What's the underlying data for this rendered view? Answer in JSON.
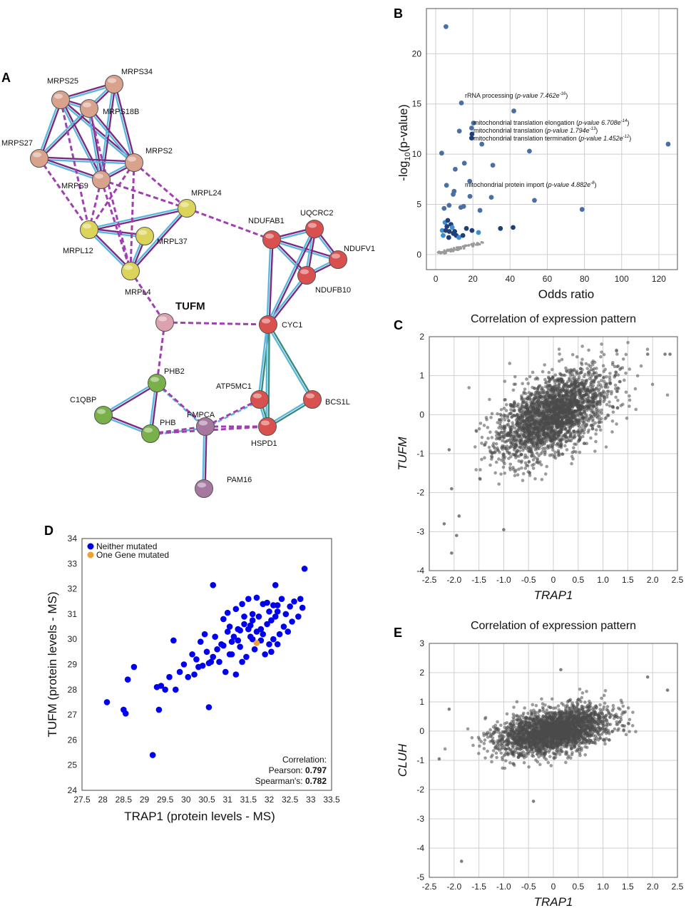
{
  "panels": {
    "A": "A",
    "B": "B",
    "C": "C",
    "D": "D",
    "E": "E"
  },
  "network": {
    "nodes": [
      {
        "id": "MRPS25",
        "color": "#d9a28c"
      },
      {
        "id": "MRPS34",
        "color": "#d9a28c"
      },
      {
        "id": "MRPS18B",
        "color": "#d9a28c"
      },
      {
        "id": "MRPS27",
        "color": "#d9a28c"
      },
      {
        "id": "MRPS2",
        "color": "#d9a28c"
      },
      {
        "id": "MRPS9",
        "color": "#d9a28c"
      },
      {
        "id": "MRPL24",
        "color": "#dcd45a"
      },
      {
        "id": "MRPL12",
        "color": "#dcd45a"
      },
      {
        "id": "MRPL37",
        "color": "#dcd45a"
      },
      {
        "id": "MRPL4",
        "color": "#dcd45a"
      },
      {
        "id": "TUFM",
        "color": "#dba2ad"
      },
      {
        "id": "NDUFAB1",
        "color": "#d9514f"
      },
      {
        "id": "UQCRC2",
        "color": "#d9514f"
      },
      {
        "id": "NDUFV1",
        "color": "#d9514f"
      },
      {
        "id": "NDUFB10",
        "color": "#d9514f"
      },
      {
        "id": "CYC1",
        "color": "#d9514f"
      },
      {
        "id": "ATP5MC1",
        "color": "#d9514f"
      },
      {
        "id": "BCS1L",
        "color": "#d9514f"
      },
      {
        "id": "HSPD1",
        "color": "#d9514f"
      },
      {
        "id": "PHB2",
        "color": "#7ab04a"
      },
      {
        "id": "C1QBP",
        "color": "#7ab04a"
      },
      {
        "id": "PHB",
        "color": "#7ab04a"
      },
      {
        "id": "PMPCA",
        "color": "#a678a0"
      },
      {
        "id": "PAM16",
        "color": "#a678a0"
      }
    ],
    "solid_edges": [
      [
        "MRPS25",
        "MRPS34"
      ],
      [
        "MRPS25",
        "MRPS18B"
      ],
      [
        "MRPS25",
        "MRPS27"
      ],
      [
        "MRPS25",
        "MRPS2"
      ],
      [
        "MRPS25",
        "MRPS9"
      ],
      [
        "MRPS34",
        "MRPS18B"
      ],
      [
        "MRPS34",
        "MRPS2"
      ],
      [
        "MRPS34",
        "MRPS9"
      ],
      [
        "MRPS18B",
        "MRPS27"
      ],
      [
        "MRPS18B",
        "MRPS2"
      ],
      [
        "MRPS18B",
        "MRPS9"
      ],
      [
        "MRPS27",
        "MRPS2"
      ],
      [
        "MRPS27",
        "MRPS9"
      ],
      [
        "MRPS2",
        "MRPS9"
      ],
      [
        "MRPL24",
        "MRPL12"
      ],
      [
        "MRPL24",
        "MRPL4"
      ],
      [
        "MRPL12",
        "MRPL37"
      ],
      [
        "MRPL12",
        "MRPL4"
      ],
      [
        "MRPL37",
        "MRPL4"
      ],
      [
        "NDUFAB1",
        "UQCRC2"
      ],
      [
        "NDUFAB1",
        "NDUFV1"
      ],
      [
        "NDUFAB1",
        "NDUFB10"
      ],
      [
        "UQCRC2",
        "NDUFV1"
      ],
      [
        "UQCRC2",
        "NDUFB10"
      ],
      [
        "NDUFV1",
        "NDUFB10"
      ],
      [
        "NDUFAB1",
        "CYC1"
      ],
      [
        "UQCRC2",
        "CYC1"
      ],
      [
        "NDUFB10",
        "CYC1"
      ],
      [
        "CYC1",
        "ATP5MC1"
      ],
      [
        "CYC1",
        "BCS1L"
      ],
      [
        "CYC1",
        "HSPD1"
      ],
      [
        "ATP5MC1",
        "HSPD1"
      ],
      [
        "BCS1L",
        "HSPD1"
      ],
      [
        "PHB2",
        "C1QBP"
      ],
      [
        "PHB2",
        "PHB"
      ],
      [
        "C1QBP",
        "PHB"
      ],
      [
        "PMPCA",
        "PAM16"
      ]
    ],
    "dashed_edges": [
      [
        "MRPS27",
        "MRPL12"
      ],
      [
        "MRPS9",
        "MRPL12"
      ],
      [
        "MRPS9",
        "MRPL4"
      ],
      [
        "MRPS9",
        "MRPL24"
      ],
      [
        "MRPS2",
        "MRPL12"
      ],
      [
        "MRPS2",
        "MRPL24"
      ],
      [
        "MRPS18B",
        "MRPL4"
      ],
      [
        "MRPS2",
        "MRPL4"
      ],
      [
        "MRPS25",
        "MRPL12"
      ],
      [
        "MRPL24",
        "NDUFAB1"
      ],
      [
        "MRPL4",
        "TUFM"
      ],
      [
        "TUFM",
        "CYC1"
      ],
      [
        "TUFM",
        "PHB2"
      ],
      [
        "PHB2",
        "PMPCA"
      ],
      [
        "PHB",
        "PMPCA"
      ],
      [
        "PMPCA",
        "HSPD1"
      ],
      [
        "PMPCA",
        "ATP5MC1"
      ],
      [
        "PHB",
        "HSPD1"
      ]
    ]
  },
  "chart_data": [
    {
      "panel": "B",
      "type": "scatter",
      "xlabel": "Odds ratio",
      "ylabel_prefix": "-log",
      "ylabel_sub": "10",
      "ylabel_suffix": "(p-value)",
      "xlim": [
        -5,
        130
      ],
      "ylim": [
        -1.5,
        24.5
      ],
      "xticks": [
        0,
        20,
        40,
        60,
        80,
        100,
        120
      ],
      "yticks": [
        0,
        5,
        10,
        15,
        20
      ],
      "grid": true,
      "points": [
        [
          5.5,
          22.7
        ],
        [
          13.8,
          15.1
        ],
        [
          42,
          14.3
        ],
        [
          20.3,
          13.1
        ],
        [
          19.3,
          12.6
        ],
        [
          12.7,
          12.3
        ],
        [
          19.5,
          12
        ],
        [
          19.3,
          11.6
        ],
        [
          125,
          11
        ],
        [
          24.8,
          11
        ],
        [
          3.2,
          10.1
        ],
        [
          50.4,
          10.3
        ],
        [
          10.5,
          8.5
        ],
        [
          30.7,
          8.9
        ],
        [
          15.4,
          9.1
        ],
        [
          18.3,
          7.3
        ],
        [
          5.8,
          6.9
        ],
        [
          9.9,
          6.3
        ],
        [
          9.4,
          6
        ],
        [
          29.9,
          5.7
        ],
        [
          18.4,
          5.8
        ],
        [
          53.1,
          5.4
        ],
        [
          23.8,
          4.4
        ],
        [
          78.7,
          4.5
        ],
        [
          15,
          4.8
        ],
        [
          4.5,
          4.6
        ],
        [
          7.2,
          4.9
        ],
        [
          13.5,
          4.7
        ],
        [
          41.6,
          2.7
        ],
        [
          34.8,
          2.6
        ],
        [
          23,
          2.2
        ],
        [
          19.5,
          2.4
        ],
        [
          16.5,
          2.6
        ],
        [
          5,
          3.2
        ],
        [
          6.5,
          3.4
        ],
        [
          8.2,
          3
        ],
        [
          3.5,
          2.4
        ],
        [
          5.4,
          2.4
        ],
        [
          7.3,
          2.3
        ],
        [
          8.9,
          2.7
        ],
        [
          10.2,
          2.3
        ],
        [
          6,
          2.8
        ],
        [
          4,
          1.9
        ],
        [
          7,
          1.7
        ],
        [
          11,
          1.9
        ],
        [
          12.5,
          1.7
        ],
        [
          14.6,
          1.9
        ],
        [
          9.5,
          2.1
        ]
      ],
      "small_points_count": 60,
      "annotations": [
        {
          "text": "rRNA processing ",
          "pv": "p-value 7.462e",
          "exp": "-16",
          "close": ")"
        },
        {
          "text": "mitochondrial translation elongation ",
          "pv": "p-value 6.708e",
          "exp": "-14",
          "close": ")"
        },
        {
          "text": "mitochondrial translation ",
          "pv": "p-value 1.794e",
          "exp": "-13",
          "close": ")"
        },
        {
          "text": "mitochondrial translation termination ",
          "pv": "p-value 1.452e",
          "exp": "-12",
          "close": ")"
        },
        {
          "text": "mitochondrial protein import ",
          "pv": "p-value 4.882e",
          "exp": "-8",
          "close": ")"
        }
      ],
      "colors": {
        "dark": "#1f3f7a",
        "mid": "#4a6fa5",
        "light": "#3b8fd0",
        "grey": "#9a9a9a"
      }
    },
    {
      "panel": "C",
      "type": "scatter",
      "title": "Correlation of expression pattern",
      "xlabel": "TRAP1",
      "ylabel": "TUFM",
      "xlim": [
        -2.5,
        2.5
      ],
      "ylim": [
        -4,
        2
      ],
      "xticks": [
        -2.5,
        -2.0,
        -1.5,
        -1.0,
        -0.5,
        0,
        0.5,
        1.0,
        1.5,
        2.0,
        2.5
      ],
      "xtick_labels": [
        "-2.5",
        "-2.0",
        "-1.5",
        "-1.0",
        "-0.5",
        "0",
        "0.5",
        "1.0",
        "1.5",
        "2.0",
        "2.5"
      ],
      "yticks": [
        -4,
        -3,
        -2,
        -1,
        0,
        1,
        2
      ],
      "grid": true,
      "n_points": 2600,
      "trend_slope": 0.55,
      "outliers": [
        [
          -2.2,
          -2.8
        ],
        [
          -2.05,
          -3.55
        ],
        [
          -1.95,
          -3.1
        ],
        [
          -1.9,
          -2.6
        ],
        [
          -1.0,
          -2.95
        ],
        [
          2.35,
          1.55
        ],
        [
          2.25,
          1.55
        ],
        [
          1.9,
          1.55
        ],
        [
          -2.05,
          -1.9
        ],
        [
          -2.1,
          -0.9
        ]
      ],
      "point_color": "#4a4a4a"
    },
    {
      "panel": "D",
      "type": "scatter",
      "xlabel": "TRAP1 (protein levels - MS)",
      "ylabel": "TUFM (protein levels - MS)",
      "xlim": [
        27.5,
        33.5
      ],
      "ylim": [
        24,
        34
      ],
      "xticks": [
        27.5,
        28,
        28.5,
        29,
        29.5,
        30,
        30.5,
        31,
        31.5,
        32,
        32.5,
        33,
        33.5
      ],
      "xtick_labels": [
        "27.5",
        "28",
        "28.5",
        "29",
        "29.5",
        "30",
        "30.5",
        "31",
        "31.5",
        "32",
        "32.5",
        "33",
        "33.5"
      ],
      "yticks": [
        24,
        25,
        26,
        27,
        28,
        29,
        30,
        31,
        32,
        33,
        34
      ],
      "legend": [
        {
          "label": "Neither mutated",
          "color": "#0000ee"
        },
        {
          "label": "One Gene mutated",
          "color": "#f0a030"
        }
      ],
      "correlation_title": "Correlation:",
      "pearson_label": "Pearson: ",
      "pearson_value": "0.797",
      "spearman_label": "Spearman's: ",
      "spearman_value": "0.782",
      "series_neither": [
        [
          28.1,
          27.5
        ],
        [
          28.5,
          27.2
        ],
        [
          28.55,
          27.05
        ],
        [
          28.6,
          28.4
        ],
        [
          28.75,
          28.9
        ],
        [
          29.2,
          25.4
        ],
        [
          29.3,
          28.1
        ],
        [
          29.35,
          27.2
        ],
        [
          29.4,
          28.15
        ],
        [
          29.5,
          28
        ],
        [
          29.6,
          28.5
        ],
        [
          29.7,
          29.95
        ],
        [
          29.75,
          28
        ],
        [
          29.85,
          28.7
        ],
        [
          29.95,
          29
        ],
        [
          30.05,
          28.5
        ],
        [
          30.15,
          29.4
        ],
        [
          30.2,
          28.6
        ],
        [
          30.25,
          29.2
        ],
        [
          30.3,
          28.9
        ],
        [
          30.35,
          29.9
        ],
        [
          30.4,
          28.95
        ],
        [
          30.45,
          30.2
        ],
        [
          30.5,
          29.5
        ],
        [
          30.55,
          27.3
        ],
        [
          30.6,
          29.1
        ],
        [
          30.65,
          32.15
        ],
        [
          30.65,
          29.3
        ],
        [
          30.7,
          30.1
        ],
        [
          30.75,
          29.6
        ],
        [
          30.8,
          29.1
        ],
        [
          30.85,
          29.8
        ],
        [
          30.9,
          29.75
        ],
        [
          30.95,
          28.7
        ],
        [
          31.0,
          30.3
        ],
        [
          31.05,
          30.5
        ],
        [
          31.1,
          29.9
        ],
        [
          31.1,
          29.4
        ],
        [
          31.15,
          30.1
        ],
        [
          31.2,
          31.2
        ],
        [
          31.2,
          28.6
        ],
        [
          31.25,
          30.4
        ],
        [
          31.3,
          29.7
        ],
        [
          31.35,
          31.4
        ],
        [
          31.35,
          29.1
        ],
        [
          31.4,
          30.6
        ],
        [
          31.45,
          29.3
        ],
        [
          31.5,
          30.4
        ],
        [
          31.5,
          31.6
        ],
        [
          31.55,
          30.1
        ],
        [
          31.6,
          30.0
        ],
        [
          31.6,
          31.0
        ],
        [
          31.65,
          29.6
        ],
        [
          31.7,
          30.3
        ],
        [
          31.75,
          30.9
        ],
        [
          31.8,
          30.4
        ],
        [
          31.85,
          30.2
        ],
        [
          31.85,
          31.4
        ],
        [
          31.9,
          29.4
        ],
        [
          31.95,
          30.6
        ],
        [
          32.0,
          31.1
        ],
        [
          32.05,
          29.5
        ],
        [
          32.1,
          30.0
        ],
        [
          32.15,
          32.15
        ],
        [
          32.15,
          30.9
        ],
        [
          32.2,
          29.8
        ],
        [
          32.25,
          30.2
        ],
        [
          32.3,
          31.6
        ],
        [
          32.35,
          30.5
        ],
        [
          32.4,
          31.0
        ],
        [
          32.45,
          30.3
        ],
        [
          32.5,
          31.3
        ],
        [
          32.55,
          30.7
        ],
        [
          32.6,
          31.5
        ],
        [
          32.7,
          30.9
        ],
        [
          32.75,
          31.6
        ],
        [
          32.85,
          32.8
        ],
        [
          32.8,
          31.25
        ],
        [
          32.2,
          31.35
        ],
        [
          31.95,
          31.45
        ],
        [
          31.7,
          31.65
        ],
        [
          31.4,
          30.9
        ],
        [
          31.3,
          30.35
        ],
        [
          31.05,
          29.4
        ],
        [
          30.9,
          30.8
        ],
        [
          32.05,
          30.75
        ],
        [
          32.1,
          31.35
        ],
        [
          31.55,
          30.55
        ],
        [
          31.8,
          29.95
        ],
        [
          32.0,
          29.8
        ],
        [
          31.25,
          29.95
        ],
        [
          30.55,
          29.05
        ],
        [
          31.6,
          30.75
        ],
        [
          32.2,
          31.1
        ],
        [
          31.0,
          31.05
        ]
      ],
      "series_mutated": [
        [
          31.7,
          29.85
        ]
      ]
    },
    {
      "panel": "E",
      "type": "scatter",
      "title": "Correlation of expression pattern",
      "xlabel": "TRAP1",
      "ylabel": "CLUH",
      "xlim": [
        -2.5,
        2.5
      ],
      "ylim": [
        -5,
        3
      ],
      "xticks": [
        -2.5,
        -2.0,
        -1.5,
        -1.0,
        -0.5,
        0,
        0.5,
        1.0,
        1.5,
        2.0,
        2.5
      ],
      "xtick_labels": [
        "-2.5",
        "-2.0",
        "-1.5",
        "-1.0",
        "-0.5",
        "0",
        "0.5",
        "1.0",
        "1.5",
        "2.0",
        "2.5"
      ],
      "yticks": [
        -5,
        -4,
        -3,
        -2,
        -1,
        0,
        1,
        2,
        3
      ],
      "grid": true,
      "n_points": 2600,
      "trend_slope": 0.28,
      "outliers": [
        [
          -1.85,
          -4.45
        ],
        [
          -0.4,
          -2.4
        ],
        [
          0.15,
          2.1
        ],
        [
          1.9,
          1.85
        ],
        [
          2.3,
          1.4
        ],
        [
          -2.1,
          0.75
        ],
        [
          -2.3,
          -0.95
        ]
      ],
      "point_color": "#4a4a4a"
    }
  ]
}
